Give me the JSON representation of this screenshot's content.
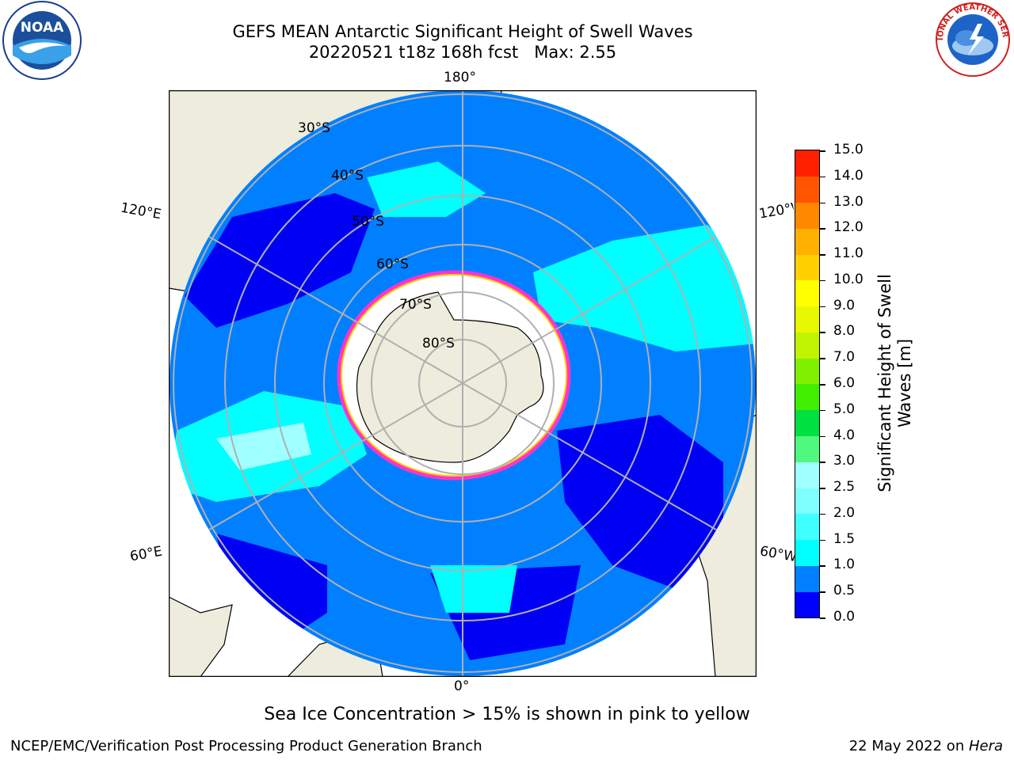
{
  "header": {
    "title_line1": "GEFS MEAN Antarctic Significant Height of Swell Waves",
    "title_line2": "20220521 t18z 168h fcst   Max: 2.55"
  },
  "logos": {
    "left": {
      "text": "NOAA",
      "ring_text": "NATIONAL OCEANIC AND ATMOSPHERIC ADMINISTRATION · U.S. DEPARTMENT OF COMMERCE"
    },
    "right": {
      "ring_text": "NATIONAL WEATHER SERVICE"
    }
  },
  "map": {
    "longitude_labels": {
      "top": "180°",
      "bottom": "0°",
      "upper_left": "120°E",
      "upper_right": "120°W",
      "lower_left": "60°E",
      "lower_right": "60°W"
    },
    "latitude_labels": [
      "30°S",
      "40°S",
      "50°S",
      "60°S",
      "70°S",
      "80°S"
    ],
    "colors": {
      "land": "#eeecdc",
      "ocean_low": "#0000f5",
      "ocean_mid": "#0080ff",
      "ocean_high": "#00ffff",
      "ice": "#ffffff",
      "ice_edge": "#ff33cc",
      "grid": "#b0b0b0"
    }
  },
  "colorbar": {
    "title_line1": "Significant Height of Swell",
    "title_line2": "Waves [m]",
    "ticks": [
      "0.0",
      "0.5",
      "1.0",
      "1.5",
      "2.0",
      "2.5",
      "3.0",
      "4.0",
      "5.0",
      "6.0",
      "7.0",
      "8.0",
      "9.0",
      "10.0",
      "11.0",
      "12.0",
      "13.0",
      "14.0",
      "15.0"
    ],
    "colors": [
      "#0000ff",
      "#0080ff",
      "#00ffff",
      "#40ffff",
      "#80ffff",
      "#a0ffff",
      "#50f880",
      "#00e040",
      "#40ee00",
      "#80f000",
      "#c0f400",
      "#e8f800",
      "#ffff00",
      "#ffd000",
      "#ffb000",
      "#ff8800",
      "#ff5500",
      "#ff2000"
    ]
  },
  "caption": "Sea Ice Concentration > 15% is shown in pink to yellow",
  "footer": {
    "left": "NCEP/EMC/Verification Post Processing Product Generation Branch",
    "right_prefix": "22 May 2022 on ",
    "right_host": "Hera"
  }
}
